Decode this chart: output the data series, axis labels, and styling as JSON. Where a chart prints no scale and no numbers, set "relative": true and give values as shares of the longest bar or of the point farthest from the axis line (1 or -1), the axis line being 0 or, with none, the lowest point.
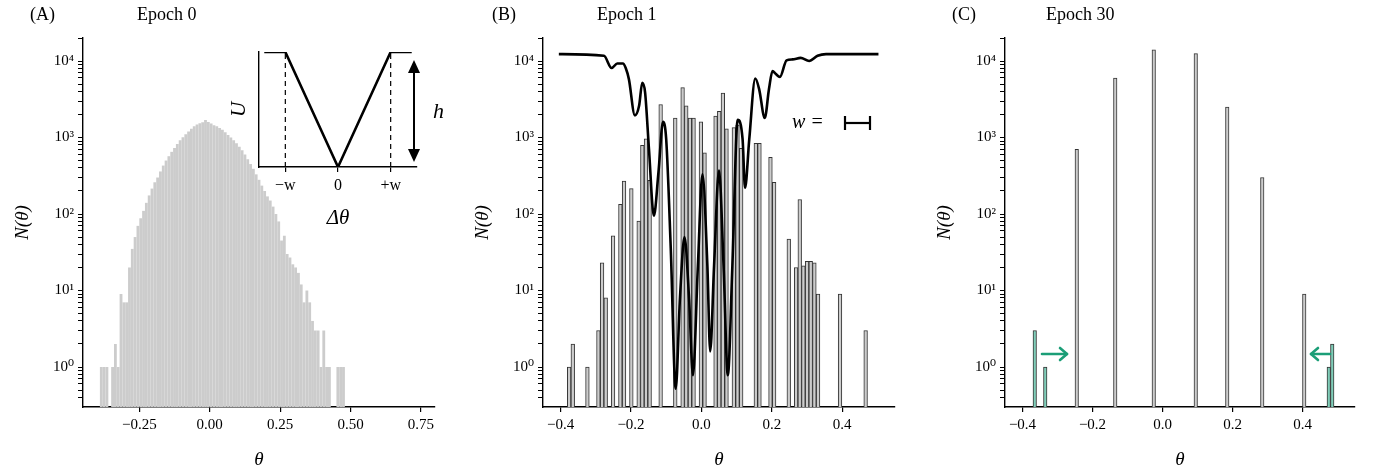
{
  "chart_data": [
    {
      "type": "histogram",
      "title": "Epoch 0",
      "xlabel": "θ",
      "ylabel": "N(θ)",
      "log": true,
      "xlim": [
        -0.45,
        0.8
      ],
      "ylim": [
        0.3,
        20000
      ],
      "xticks": [
        {
          "value": -0.25,
          "label": "−0.25"
        },
        {
          "value": 0,
          "label": "0.00"
        },
        {
          "value": 0.25,
          "label": "0.25"
        },
        {
          "value": 0.5,
          "label": "0.50"
        },
        {
          "value": 0.75,
          "label": "0.75"
        }
      ],
      "yticks": [
        {
          "value": 0.4,
          "label": null
        },
        {
          "value": 0.5,
          "label": null
        },
        {
          "value": 0.6,
          "label": null
        },
        {
          "value": 0.7,
          "label": null
        },
        {
          "value": 0.8,
          "label": null
        },
        {
          "value": 0.9,
          "label": null
        },
        {
          "value": 1,
          "label": "10⁰"
        },
        {
          "value": 2,
          "label": null
        },
        {
          "value": 3,
          "label": null
        },
        {
          "value": 4,
          "label": null
        },
        {
          "value": 5,
          "label": null
        },
        {
          "value": 6,
          "label": null
        },
        {
          "value": 7,
          "label": null
        },
        {
          "value": 8,
          "label": null
        },
        {
          "value": 9,
          "label": null
        },
        {
          "value": 10,
          "label": "10¹"
        },
        {
          "value": 20,
          "label": null
        },
        {
          "value": 30,
          "label": null
        },
        {
          "value": 40,
          "label": null
        },
        {
          "value": 50,
          "label": null
        },
        {
          "value": 60,
          "label": null
        },
        {
          "value": 70,
          "label": null
        },
        {
          "value": 80,
          "label": null
        },
        {
          "value": 90,
          "label": null
        },
        {
          "value": 100,
          "label": "10²"
        },
        {
          "value": 200,
          "label": null
        },
        {
          "value": 300,
          "label": null
        },
        {
          "value": 400,
          "label": null
        },
        {
          "value": 500,
          "label": null
        },
        {
          "value": 600,
          "label": null
        },
        {
          "value": 700,
          "label": null
        },
        {
          "value": 800,
          "label": null
        },
        {
          "value": 900,
          "label": null
        },
        {
          "value": 1000,
          "label": "10³"
        },
        {
          "value": 2000,
          "label": null
        },
        {
          "value": 3000,
          "label": null
        },
        {
          "value": 4000,
          "label": null
        },
        {
          "value": 5000,
          "label": null
        },
        {
          "value": 6000,
          "label": null
        },
        {
          "value": 7000,
          "label": null
        },
        {
          "value": 8000,
          "label": null
        },
        {
          "value": 9000,
          "label": null
        },
        {
          "value": 10000,
          "label": "10⁴"
        },
        {
          "value": 20000,
          "label": null
        }
      ],
      "bins": [
        -0.39,
        -0.38,
        -0.37,
        -0.36,
        -0.35,
        -0.34,
        -0.33,
        -0.32,
        -0.31,
        -0.3,
        -0.29,
        -0.28,
        -0.27,
        -0.26,
        -0.25,
        -0.24,
        -0.23,
        -0.22,
        -0.21,
        -0.2,
        -0.19,
        -0.18,
        -0.17,
        -0.16,
        -0.15,
        -0.14,
        -0.13,
        -0.12,
        -0.11,
        -0.1,
        -0.09,
        -0.08,
        -0.07,
        -0.06,
        -0.05,
        -0.04,
        -0.03,
        -0.02,
        -0.01,
        0,
        0.01,
        0.02,
        0.03,
        0.04,
        0.05,
        0.06,
        0.07,
        0.08,
        0.09,
        0.1,
        0.11,
        0.12,
        0.13,
        0.14,
        0.15,
        0.16,
        0.17,
        0.18,
        0.19,
        0.2,
        0.21,
        0.22,
        0.23,
        0.24,
        0.25,
        0.26,
        0.27,
        0.28,
        0.29,
        0.3,
        0.31,
        0.32,
        0.33,
        0.34,
        0.35,
        0.36,
        0.37,
        0.38,
        0.39,
        0.4,
        0.41,
        0.42,
        0.43,
        0.44,
        0.45,
        0.46,
        0.47,
        0.48
      ],
      "values": [
        1,
        1,
        1,
        null,
        1,
        2,
        1,
        9,
        7,
        7,
        20,
        35,
        50,
        70,
        88,
        110,
        140,
        175,
        215,
        260,
        300,
        360,
        430,
        500,
        570,
        650,
        730,
        820,
        920,
        1010,
        1100,
        1200,
        1300,
        1400,
        1480,
        1540,
        1580,
        1700,
        1600,
        1520,
        1450,
        1400,
        1330,
        1260,
        1170,
        1080,
        1000,
        920,
        840,
        760,
        680,
        600,
        520,
        450,
        390,
        330,
        280,
        235,
        200,
        170,
        150,
        125,
        100,
        80,
        45,
        52,
        30,
        27,
        22,
        20,
        17,
        12,
        7,
        10,
        7,
        4,
        3,
        3,
        1,
        3,
        1,
        1,
        null,
        null,
        1,
        1,
        1
      ],
      "color": "#cccccc",
      "annotations": [
        "(A)"
      ]
    },
    {
      "type": "line",
      "categories": [
        null,
        null,
        "−w",
        null,
        null,
        null,
        null,
        "0",
        null,
        null,
        null,
        null,
        "+w",
        null,
        null
      ],
      "values": [
        1,
        1,
        1,
        0.8,
        0.6,
        0.4,
        0.2,
        0,
        0.2,
        0.4,
        0.6,
        0.8,
        1,
        1,
        1
      ],
      "color": "#000000",
      "relative": true,
      "marker": "none",
      "xlabel": "Δθ",
      "ylabel": "U",
      "ref_lines": [
        {
          "axis": "x",
          "value": "−w",
          "line_style": "dashed"
        },
        {
          "axis": "x",
          "value": "+w",
          "line_style": "dashed"
        }
      ],
      "annotations": [
        "h"
      ]
    },
    {
      "type": "histogram",
      "title": "Epoch 1",
      "xlabel": "θ",
      "ylabel": "N(θ)",
      "log": true,
      "xlim": [
        -0.45,
        0.55
      ],
      "ylim": [
        0.3,
        20000
      ],
      "marker": "none",
      "xticks": [
        {
          "value": -0.4,
          "label": "−0.4"
        },
        {
          "value": -0.2,
          "label": "−0.2"
        },
        {
          "value": 0,
          "label": "0.0"
        },
        {
          "value": 0.2,
          "label": "0.2"
        },
        {
          "value": 0.4,
          "label": "0.4"
        }
      ],
      "yticks": [
        {
          "value": 0.4,
          "label": null
        },
        {
          "value": 0.5,
          "label": null
        },
        {
          "value": 0.6,
          "label": null
        },
        {
          "value": 0.7,
          "label": null
        },
        {
          "value": 0.8,
          "label": null
        },
        {
          "value": 0.9,
          "label": null
        },
        {
          "value": 1,
          "label": "10⁰"
        },
        {
          "value": 2,
          "label": null
        },
        {
          "value": 3,
          "label": null
        },
        {
          "value": 4,
          "label": null
        },
        {
          "value": 5,
          "label": null
        },
        {
          "value": 6,
          "label": null
        },
        {
          "value": 7,
          "label": null
        },
        {
          "value": 8,
          "label": null
        },
        {
          "value": 9,
          "label": null
        },
        {
          "value": 10,
          "label": "10¹"
        },
        {
          "value": 20,
          "label": null
        },
        {
          "value": 30,
          "label": null
        },
        {
          "value": 40,
          "label": null
        },
        {
          "value": 50,
          "label": null
        },
        {
          "value": 60,
          "label": null
        },
        {
          "value": 70,
          "label": null
        },
        {
          "value": 80,
          "label": null
        },
        {
          "value": 90,
          "label": null
        },
        {
          "value": 100,
          "label": "10²"
        },
        {
          "value": 200,
          "label": null
        },
        {
          "value": 300,
          "label": null
        },
        {
          "value": 400,
          "label": null
        },
        {
          "value": 500,
          "label": null
        },
        {
          "value": 600,
          "label": null
        },
        {
          "value": 700,
          "label": null
        },
        {
          "value": 800,
          "label": null
        },
        {
          "value": 900,
          "label": null
        },
        {
          "value": 1000,
          "label": "10³"
        },
        {
          "value": 2000,
          "label": null
        },
        {
          "value": 3000,
          "label": null
        },
        {
          "value": 4000,
          "label": null
        },
        {
          "value": 5000,
          "label": null
        },
        {
          "value": 6000,
          "label": null
        },
        {
          "value": 7000,
          "label": null
        },
        {
          "value": 8000,
          "label": null
        },
        {
          "value": 9000,
          "label": null
        },
        {
          "value": 10000,
          "label": "10⁴"
        },
        {
          "value": 20000,
          "label": null
        }
      ],
      "bins": [
        -0.381,
        -0.3706,
        -0.3602,
        -0.3498,
        -0.3394,
        -0.329,
        -0.3186,
        -0.3082,
        -0.2978,
        -0.2874,
        -0.277,
        -0.2666,
        -0.2562,
        -0.2458,
        -0.2354,
        -0.225,
        -0.2146,
        -0.2042,
        -0.1938,
        -0.1834,
        -0.173,
        -0.1626,
        -0.1522,
        -0.1418,
        -0.1314,
        -0.121,
        -0.1106,
        -0.1002,
        -0.0898,
        -0.0794,
        -0.069,
        -0.0586,
        -0.0482,
        -0.0378,
        -0.0274,
        -0.017,
        -0.0066,
        0.0038,
        0.0142,
        0.0246,
        0.035,
        0.0454,
        0.0558,
        0.0662,
        0.0766,
        0.087,
        0.0974,
        0.1078,
        0.1182,
        0.1286,
        0.139,
        0.1494,
        0.1598,
        0.1702,
        0.1806,
        0.191,
        0.2014,
        0.2118,
        0.2222,
        0.2326,
        0.243,
        0.2534,
        0.2638,
        0.2742,
        0.2846,
        0.295,
        0.3054,
        0.3158,
        0.3262,
        0.3366,
        0.347,
        0.3574,
        0.3678,
        0.3782,
        0.3886,
        0.399,
        0.4094,
        0.4198,
        0.4302,
        0.4406,
        0.451,
        0.4614,
        0.4718
      ],
      "series": [
        {
          "color": "#cccccc",
          "values": [
            1,
            2,
            null,
            null,
            null,
            1,
            null,
            null,
            3,
            23,
            8,
            null,
            52,
            null,
            134,
            270,
            null,
            215,
            null,
            81,
            790,
            960,
            275,
            null,
            null,
            2700,
            null,
            null,
            null,
            1800,
            null,
            4500,
            2600,
            1800,
            1800,
            null,
            1600,
            630,
            null,
            null,
            1900,
            2200,
            3800,
            1300,
            null,
            1350,
            1450,
            720,
            null,
            null,
            null,
            840,
            840,
            null,
            null,
            550,
            260,
            null,
            null,
            null,
            47,
            null,
            20,
            155,
            21,
            24,
            24,
            23,
            9,
            null,
            null,
            null,
            null,
            null,
            9,
            null,
            null,
            null,
            null,
            null,
            null,
            3
          ]
        },
        {
          "type": "line",
          "color": "#000000",
          "x": [
            -0.405,
            -0.277,
            -0.255,
            -0.239,
            -0.223,
            -0.215,
            -0.206,
            -0.189,
            -0.177,
            -0.168,
            -0.16,
            -0.149,
            -0.135,
            -0.122,
            -0.109,
            -0.1,
            -0.087,
            -0.073,
            -0.061,
            -0.048,
            -0.035,
            -0.024,
            -0.01,
            0.003,
            0.017,
            0.025,
            0.036,
            0.05,
            0.063,
            0.075,
            0.088,
            0.103,
            0.117,
            0.124,
            0.136,
            0.153,
            0.164,
            0.18,
            0.192,
            0.202,
            0.211,
            0.223,
            0.242,
            0.259,
            0.282,
            0.306,
            0.33,
            0.354,
            0.503
          ],
          "values": [
            12300,
            11700,
            8100,
            9300,
            9300,
            8100,
            5800,
            1950,
            2600,
            5200,
            3900,
            710,
            95,
            350,
            1600,
            950,
            35,
            0.52,
            7.8,
            50,
            7.8,
            0.78,
            21,
            330,
            21,
            1.6,
            21,
            370,
            21,
            0.78,
            21,
            1700,
            950,
            220,
            950,
            5900,
            4300,
            1800,
            4300,
            7400,
            6800,
            6200,
            10200,
            10500,
            11000,
            10000,
            11700,
            12300,
            12300
          ]
        }
      ],
      "annotations": [
        "(B)",
        "w ="
      ]
    },
    {
      "type": "histogram",
      "title": "Epoch 30",
      "xlabel": "θ",
      "ylabel": "N(θ)",
      "log": true,
      "xlim": [
        -0.45,
        0.55
      ],
      "ylim": [
        0.3,
        20000
      ],
      "xticks": [
        {
          "value": -0.4,
          "label": "−0.4"
        },
        {
          "value": -0.2,
          "label": "−0.2"
        },
        {
          "value": 0,
          "label": "0.0"
        },
        {
          "value": 0.2,
          "label": "0.2"
        },
        {
          "value": 0.4,
          "label": "0.4"
        }
      ],
      "yticks": [
        {
          "value": 0.4,
          "label": null
        },
        {
          "value": 0.5,
          "label": null
        },
        {
          "value": 0.6,
          "label": null
        },
        {
          "value": 0.7,
          "label": null
        },
        {
          "value": 0.8,
          "label": null
        },
        {
          "value": 0.9,
          "label": null
        },
        {
          "value": 1,
          "label": "10⁰"
        },
        {
          "value": 2,
          "label": null
        },
        {
          "value": 3,
          "label": null
        },
        {
          "value": 4,
          "label": null
        },
        {
          "value": 5,
          "label": null
        },
        {
          "value": 6,
          "label": null
        },
        {
          "value": 7,
          "label": null
        },
        {
          "value": 8,
          "label": null
        },
        {
          "value": 9,
          "label": null
        },
        {
          "value": 10,
          "label": "10¹"
        },
        {
          "value": 20,
          "label": null
        },
        {
          "value": 30,
          "label": null
        },
        {
          "value": 40,
          "label": null
        },
        {
          "value": 50,
          "label": null
        },
        {
          "value": 60,
          "label": null
        },
        {
          "value": 70,
          "label": null
        },
        {
          "value": 80,
          "label": null
        },
        {
          "value": 90,
          "label": null
        },
        {
          "value": 100,
          "label": "10²"
        },
        {
          "value": 200,
          "label": null
        },
        {
          "value": 300,
          "label": null
        },
        {
          "value": 400,
          "label": null
        },
        {
          "value": 500,
          "label": null
        },
        {
          "value": 600,
          "label": null
        },
        {
          "value": 700,
          "label": null
        },
        {
          "value": 800,
          "label": null
        },
        {
          "value": 900,
          "label": null
        },
        {
          "value": 1000,
          "label": "10³"
        },
        {
          "value": 2000,
          "label": null
        },
        {
          "value": 3000,
          "label": null
        },
        {
          "value": 4000,
          "label": null
        },
        {
          "value": 5000,
          "label": null
        },
        {
          "value": 6000,
          "label": null
        },
        {
          "value": 7000,
          "label": null
        },
        {
          "value": 8000,
          "label": null
        },
        {
          "value": 9000,
          "label": null
        },
        {
          "value": 10000,
          "label": "10⁴"
        },
        {
          "value": 20000,
          "label": null
        }
      ],
      "bins": [
        -0.37,
        -0.36,
        -0.35,
        -0.34,
        -0.33,
        -0.32,
        -0.31,
        -0.3,
        -0.29,
        -0.28,
        -0.27,
        -0.26,
        -0.25,
        -0.24,
        -0.23,
        -0.22,
        -0.21,
        -0.2,
        -0.19,
        -0.18,
        -0.17,
        -0.16,
        -0.15,
        -0.14,
        -0.13,
        -0.12,
        -0.11,
        -0.1,
        -0.09,
        -0.08,
        -0.07,
        -0.06,
        -0.05,
        -0.04,
        -0.03,
        -0.02,
        -0.01,
        0,
        0.01,
        0.02,
        0.03,
        0.04,
        0.05,
        0.06,
        0.07,
        0.08,
        0.09,
        0.1,
        0.11,
        0.12,
        0.13,
        0.14,
        0.15,
        0.16,
        0.17,
        0.18,
        0.19,
        0.2,
        0.21,
        0.22,
        0.23,
        0.24,
        0.25,
        0.26,
        0.27,
        0.28,
        0.29,
        0.3,
        0.31,
        0.32,
        0.33,
        0.34,
        0.35,
        0.36,
        0.37,
        0.38,
        0.39,
        0.4,
        0.41,
        0.42,
        0.43,
        0.44,
        0.45,
        0.46,
        0.47,
        0.48,
        0.49
      ],
      "series": [
        {
          "color": "#cccccc",
          "values": [
            null,
            null,
            null,
            null,
            null,
            null,
            null,
            null,
            null,
            null,
            null,
            null,
            700,
            null,
            null,
            null,
            null,
            null,
            null,
            null,
            null,
            null,
            null,
            6000,
            null,
            null,
            null,
            null,
            null,
            null,
            null,
            null,
            null,
            null,
            14000,
            null,
            null,
            null,
            null,
            null,
            null,
            null,
            null,
            null,
            null,
            null,
            12500,
            null,
            null,
            null,
            null,
            null,
            null,
            null,
            null,
            2500,
            null,
            null,
            null,
            null,
            null,
            null,
            null,
            null,
            null,
            300,
            null,
            null,
            null,
            null,
            null,
            null,
            null,
            null,
            null,
            null,
            null,
            9,
            null,
            null,
            null,
            null,
            null,
            null,
            null,
            null
          ]
        },
        {
          "color": "#7fcdb8",
          "values": [
            3,
            null,
            null,
            1,
            null,
            null,
            null,
            null,
            null,
            null,
            null,
            null,
            null,
            null,
            null,
            null,
            null,
            null,
            null,
            null,
            null,
            null,
            null,
            null,
            null,
            null,
            null,
            null,
            null,
            null,
            null,
            null,
            null,
            null,
            null,
            null,
            null,
            null,
            null,
            null,
            null,
            null,
            null,
            null,
            null,
            null,
            null,
            null,
            null,
            null,
            null,
            null,
            null,
            null,
            null,
            null,
            null,
            null,
            null,
            null,
            null,
            null,
            null,
            null,
            null,
            null,
            null,
            null,
            null,
            null,
            null,
            null,
            null,
            null,
            null,
            null,
            null,
            null,
            null,
            null,
            null,
            null,
            null,
            null,
            1,
            2
          ]
        }
      ],
      "annotations": [
        "(C)"
      ]
    }
  ]
}
